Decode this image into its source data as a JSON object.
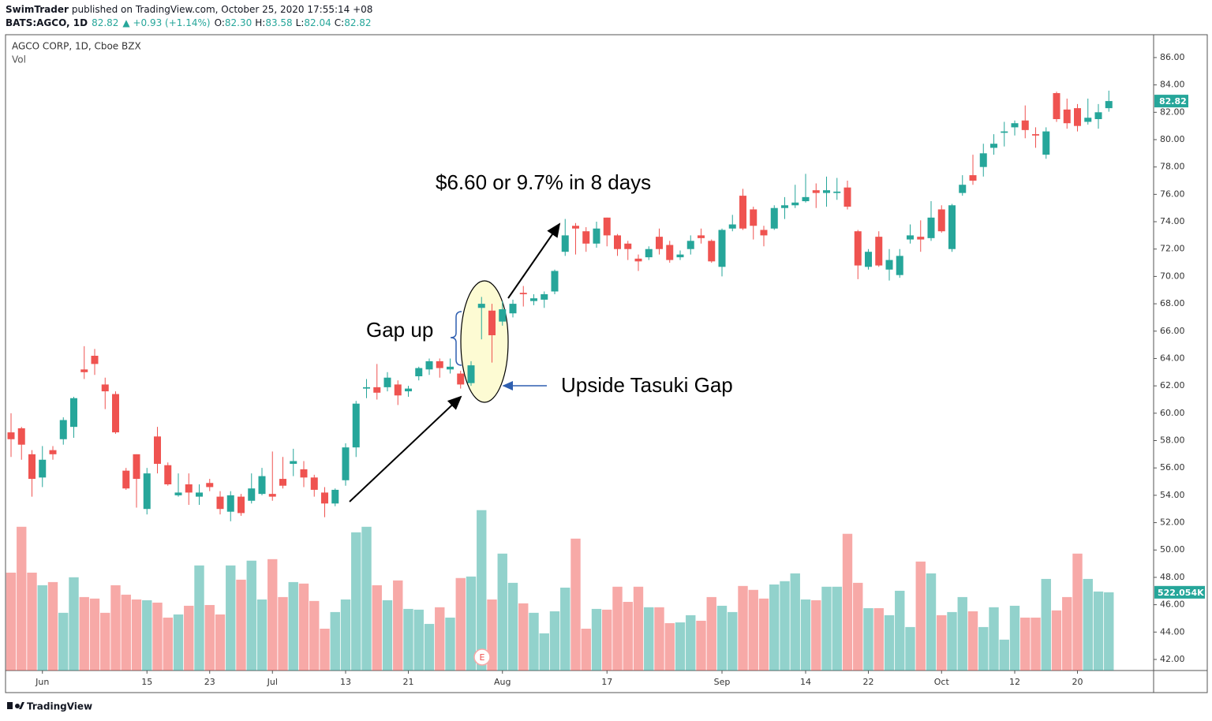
{
  "header": {
    "publisher": "SwimTrader",
    "published": "published on TradingView.com, October 25, 2020 17:55:14 +08",
    "symbol": "BATS:AGCO, 1D",
    "last": "82.82",
    "change": "▲ +0.93 (+1.14%)",
    "o_label": "O:",
    "o": "82.30",
    "h_label": "H:",
    "h": "83.58",
    "l_label": "L:",
    "l": "82.04",
    "c_label": "C:",
    "c": "82.82"
  },
  "chart_data": {
    "type": "candlestick",
    "title": "AGCO CORP, 1D, Cboe BZX",
    "volume_label": "Vol",
    "categories": [
      null,
      null,
      null,
      "Jun",
      null,
      null,
      null,
      null,
      null,
      null,
      null,
      null,
      null,
      "15",
      null,
      null,
      null,
      null,
      null,
      "23",
      null,
      null,
      null,
      null,
      null,
      "Jul",
      null,
      null,
      null,
      null,
      null,
      null,
      "13",
      null,
      null,
      null,
      null,
      null,
      "21",
      null,
      null,
      null,
      null,
      null,
      null,
      null,
      null,
      "Aug",
      null,
      null,
      null,
      null,
      null,
      null,
      null,
      null,
      null,
      "17",
      null,
      null,
      null,
      null,
      null,
      null,
      null,
      null,
      null,
      null,
      "Sep",
      null,
      null,
      null,
      null,
      null,
      null,
      null,
      "14",
      null,
      null,
      null,
      null,
      null,
      "22",
      null,
      null,
      null,
      null,
      null,
      null,
      "Oct",
      null,
      null,
      null,
      null,
      null,
      null,
      "12",
      null,
      null,
      null,
      null,
      null,
      "20",
      null,
      null,
      null
    ],
    "open": [
      58.6,
      58.9,
      57.0,
      55.3,
      57.3,
      58.1,
      59.0,
      63.2,
      64.2,
      62.1,
      61.4,
      55.8,
      57.0,
      53.0,
      58.3,
      56.2,
      54.0,
      54.8,
      53.9,
      54.9,
      53.9,
      52.8,
      53.9,
      53.6,
      54.1,
      54.1,
      55.2,
      56.3,
      55.9,
      55.3,
      54.2,
      53.4,
      55.1,
      57.5,
      61.8,
      61.9,
      61.9,
      62.1,
      61.6,
      62.7,
      63.2,
      63.8,
      63.2,
      62.9,
      62.2,
      67.7,
      67.5,
      66.7,
      67.3,
      68.8,
      68.2,
      68.3,
      68.9,
      71.8,
      73.7,
      73.3,
      72.4,
      74.3,
      73.0,
      72.4,
      71.3,
      71.4,
      72.9,
      72.3,
      71.4,
      72.0,
      73.0,
      72.6,
      70.7,
      73.5,
      75.9,
      74.9,
      73.4,
      73.5,
      75.0,
      75.2,
      75.5,
      76.3,
      76.1,
      76.1,
      76.5,
      73.3,
      70.7,
      72.9,
      70.5,
      70.1,
      72.7,
      72.9,
      72.8,
      74.9,
      72.0,
      76.1,
      77.4,
      78.0,
      79.4,
      80.5,
      80.9,
      81.4,
      80.4,
      78.9,
      83.4,
      82.2,
      82.3,
      81.3,
      81.5,
      82.3
    ],
    "high": [
      60.0,
      59.0,
      57.3,
      57.6,
      57.6,
      59.7,
      61.2,
      64.9,
      64.7,
      62.6,
      61.6,
      56.0,
      57.0,
      56.0,
      59.0,
      56.4,
      55.6,
      55.6,
      54.8,
      55.2,
      54.3,
      54.3,
      54.1,
      55.6,
      56.0,
      57.2,
      56.8,
      57.4,
      56.5,
      55.5,
      54.6,
      54.5,
      57.8,
      60.9,
      62.5,
      63.6,
      63.0,
      62.4,
      62.0,
      63.4,
      64.0,
      64.0,
      64.0,
      63.1,
      63.8,
      68.5,
      68.0,
      68.2,
      68.3,
      69.3,
      68.7,
      68.9,
      70.5,
      74.2,
      73.9,
      73.6,
      74.0,
      74.3,
      73.1,
      72.6,
      71.6,
      72.2,
      73.5,
      72.6,
      71.9,
      73.0,
      73.5,
      72.7,
      73.5,
      74.5,
      76.4,
      75.1,
      73.7,
      75.2,
      75.8,
      76.7,
      77.5,
      76.8,
      77.3,
      77.2,
      77.0,
      73.4,
      72.0,
      73.3,
      72.0,
      72.0,
      73.8,
      74.1,
      75.5,
      75.2,
      75.3,
      77.4,
      78.9,
      79.7,
      80.4,
      81.3,
      81.4,
      82.5,
      80.9,
      80.9,
      83.5,
      83.0,
      82.6,
      83.0,
      82.6,
      83.58
    ],
    "low": [
      56.8,
      56.6,
      53.9,
      54.6,
      56.6,
      57.7,
      58.2,
      62.5,
      62.8,
      60.3,
      58.5,
      54.4,
      53.1,
      52.6,
      55.6,
      54.7,
      53.9,
      53.3,
      53.3,
      54.3,
      52.6,
      52.1,
      52.5,
      53.4,
      54.0,
      53.6,
      54.5,
      55.4,
      54.6,
      53.9,
      52.4,
      53.2,
      54.7,
      56.8,
      61.1,
      61.0,
      61.6,
      60.6,
      61.2,
      62.4,
      62.8,
      62.6,
      62.9,
      61.8,
      62.0,
      65.4,
      63.7,
      66.4,
      67.0,
      67.8,
      67.9,
      67.7,
      68.7,
      71.5,
      71.6,
      71.8,
      72.1,
      72.2,
      71.5,
      71.2,
      70.4,
      71.2,
      71.6,
      71.0,
      71.2,
      71.6,
      72.4,
      71.0,
      70.0,
      73.3,
      73.4,
      72.7,
      72.2,
      73.4,
      74.2,
      75.0,
      75.4,
      75.0,
      75.1,
      75.6,
      74.9,
      69.8,
      70.5,
      70.7,
      69.7,
      69.9,
      72.4,
      71.8,
      72.6,
      73.2,
      71.8,
      75.9,
      76.7,
      77.3,
      78.9,
      79.5,
      80.3,
      80.1,
      79.4,
      78.6,
      81.3,
      80.8,
      80.6,
      81.1,
      80.8,
      82.04
    ],
    "close": [
      58.1,
      57.7,
      55.2,
      56.6,
      57.0,
      59.5,
      61.1,
      63.0,
      63.6,
      61.6,
      58.6,
      54.5,
      55.2,
      55.6,
      56.3,
      54.8,
      54.2,
      54.2,
      54.2,
      54.6,
      53.0,
      54.0,
      52.7,
      54.5,
      55.4,
      53.9,
      54.7,
      56.5,
      55.3,
      54.4,
      53.4,
      54.4,
      57.5,
      60.7,
      61.9,
      61.5,
      62.6,
      61.3,
      61.8,
      63.3,
      63.8,
      63.3,
      63.4,
      62.1,
      63.5,
      68.0,
      65.7,
      67.6,
      68.0,
      68.7,
      68.4,
      68.7,
      70.4,
      73.0,
      73.5,
      72.4,
      73.5,
      73.0,
      72.0,
      72.0,
      71.1,
      72.0,
      72.0,
      71.2,
      71.6,
      72.6,
      72.8,
      71.1,
      73.4,
      73.8,
      73.5,
      73.7,
      73.0,
      75.0,
      75.2,
      75.4,
      75.8,
      76.1,
      76.3,
      76.2,
      75.1,
      70.8,
      71.8,
      70.8,
      71.2,
      71.5,
      73.0,
      72.7,
      74.3,
      73.3,
      75.2,
      76.7,
      77.0,
      79.0,
      79.7,
      80.6,
      81.2,
      80.7,
      80.3,
      80.6,
      81.5,
      81.2,
      81.0,
      81.6,
      82.0,
      82.82
    ],
    "volume": [
      653,
      959,
      653,
      569,
      590,
      385,
      622,
      490,
      480,
      385,
      569,
      506,
      474,
      469,
      453,
      353,
      374,
      432,
      701,
      437,
      374,
      701,
      606,
      733,
      474,
      743,
      490,
      590,
      580,
      464,
      279,
      390,
      474,
      922,
      959,
      569,
      469,
      601,
      411,
      406,
      311,
      422,
      353,
      617,
      627,
      1070,
      474,
      780,
      585,
      448,
      385,
      248,
      395,
      553,
      880,
      279,
      411,
      406,
      559,
      458,
      559,
      422,
      422,
      316,
      321,
      369,
      332,
      490,
      432,
      390,
      564,
      538,
      480,
      574,
      596,
      648,
      474,
      469,
      559,
      559,
      912,
      585,
      416,
      416,
      369,
      532,
      290,
      727,
      648,
      369,
      390,
      490,
      395,
      290,
      422,
      206,
      432,
      353,
      353,
      611,
      401,
      490,
      780,
      611,
      527,
      522.054
    ],
    "up_color": "#26a69a",
    "down_color": "#ef5350",
    "ylim": [
      41.19,
      87.67
    ],
    "yticks": [
      {
        "value": 42,
        "label": "42.00"
      },
      {
        "value": 44,
        "label": "44.00"
      },
      {
        "value": 46,
        "label": "46.00"
      },
      {
        "value": 48,
        "label": "48.00"
      },
      {
        "value": 50,
        "label": "50.00"
      },
      {
        "value": 52,
        "label": "52.00"
      },
      {
        "value": 54,
        "label": "54.00"
      },
      {
        "value": 56,
        "label": "56.00"
      },
      {
        "value": 58,
        "label": "58.00"
      },
      {
        "value": 60,
        "label": "60.00"
      },
      {
        "value": 62,
        "label": "62.00"
      },
      {
        "value": 64,
        "label": "64.00"
      },
      {
        "value": 66,
        "label": "66.00"
      },
      {
        "value": 68,
        "label": "68.00"
      },
      {
        "value": 70,
        "label": "70.00"
      },
      {
        "value": 72,
        "label": "72.00"
      },
      {
        "value": 74,
        "label": "74.00"
      },
      {
        "value": 76,
        "label": "76.00"
      },
      {
        "value": 78,
        "label": "78.00"
      },
      {
        "value": 80,
        "label": "80.00"
      },
      {
        "value": 82,
        "label": "82.00"
      },
      {
        "value": 84,
        "label": "84.00"
      },
      {
        "value": 86,
        "label": "86.00"
      }
    ],
    "volume_ylim": [
      0,
      1100
    ],
    "last_price": {
      "value": 82.82,
      "label": "82.82"
    },
    "last_volume": {
      "value": 522.054,
      "label": "522.054K"
    },
    "annotations": [
      "$6.60 or 9.7% in 8 days",
      "Gap up",
      "Upside Tasuki Gap"
    ],
    "earnings_marker": "E",
    "grid": false
  },
  "footer": {
    "brand": "TradingView"
  }
}
